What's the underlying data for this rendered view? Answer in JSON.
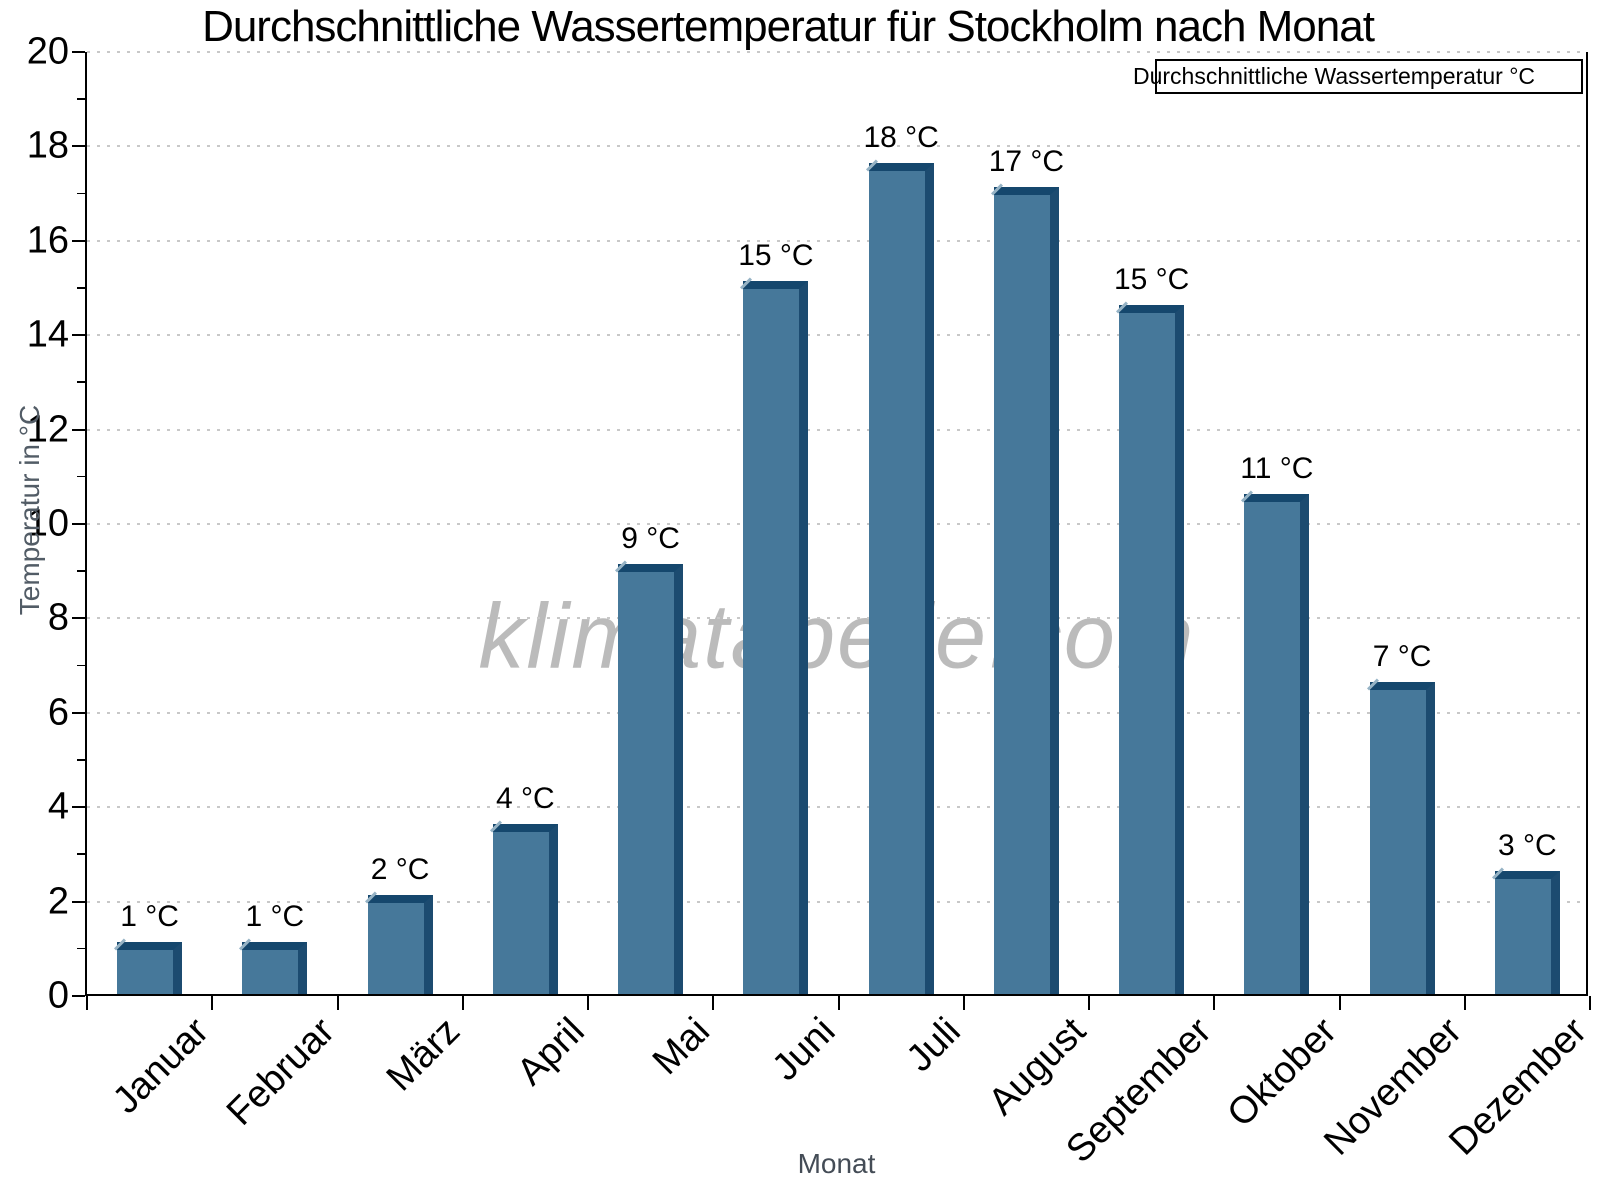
{
  "chart_data": {
    "type": "bar",
    "title": "Durchschnittliche Wassertemperatur für Stockholm nach Monat",
    "xlabel": "Monat",
    "ylabel": "Temperatur in °C",
    "legend_label": "Durchschnittliche Wassertemperatur °C",
    "legend_position": "top-right",
    "watermark": "klimatabelle.com",
    "categories": [
      "Januar",
      "Februar",
      "März",
      "April",
      "Mai",
      "Juni",
      "Juli",
      "August",
      "September",
      "Oktober",
      "November",
      "Dezember"
    ],
    "values": [
      1.1,
      1.1,
      2.1,
      3.6,
      9.1,
      15.1,
      17.6,
      17.1,
      14.6,
      10.6,
      6.6,
      2.6
    ],
    "bar_labels": [
      "1 °C",
      "1 °C",
      "2 °C",
      "4 °C",
      "9 °C",
      "15 °C",
      "18 °C",
      "17 °C",
      "15 °C",
      "11 °C",
      "7 °C",
      "3 °C"
    ],
    "ylim": [
      0,
      20
    ],
    "ytick_major_step": 2,
    "ytick_minor_step": 1,
    "grid": "dotted-horizontal-major",
    "colors": {
      "bar_face": "#46789a",
      "bar_side": "#1c4b70",
      "bar_top": "#15476d",
      "bar_bevel": "#96b3c5",
      "gridline": "#c8c8c8",
      "axis": "#000000",
      "axis_title": "#525c66",
      "watermark": "#919191"
    }
  }
}
